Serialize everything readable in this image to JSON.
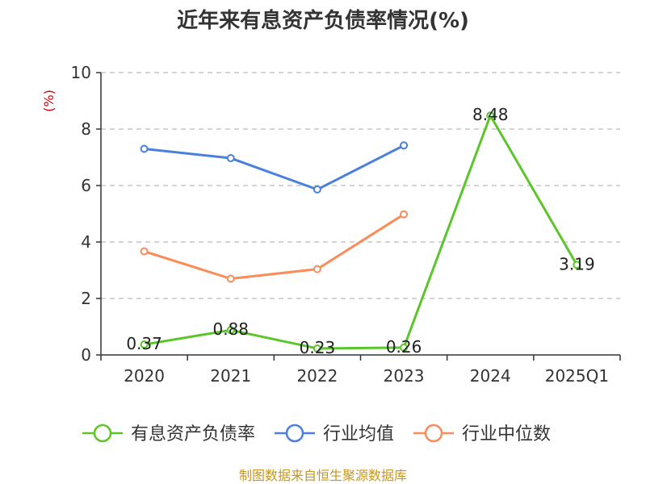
{
  "chart_data": {
    "type": "line",
    "title": "近年来有息资产负债率情况(%)",
    "ylabel": "(%)",
    "xlabel": "",
    "categories": [
      "2020",
      "2021",
      "2022",
      "2023",
      "2024",
      "2025Q1"
    ],
    "ylim": [
      0,
      10
    ],
    "yticks": [
      0,
      2,
      4,
      6,
      8,
      10
    ],
    "grid": true,
    "legend_position": "bottom",
    "series": [
      {
        "name": "有息资产负债率",
        "color": "#5cc52b",
        "values": [
          0.37,
          0.88,
          0.23,
          0.26,
          8.48,
          3.19
        ],
        "labels": [
          "0.37",
          "0.88",
          "0.23",
          "0.26",
          "8.48",
          "3.19"
        ]
      },
      {
        "name": "行业均值",
        "color": "#4a7fdc",
        "values": [
          7.3,
          6.97,
          5.86,
          7.42,
          null,
          null
        ]
      },
      {
        "name": "行业中位数",
        "color": "#fa8c5a",
        "values": [
          3.67,
          2.7,
          3.04,
          4.98,
          null,
          null
        ]
      }
    ]
  },
  "footer": {
    "source": "制图数据来自恒生聚源数据库"
  },
  "colors": {
    "title": "#333333",
    "axis": "#333333",
    "grid": "#bbbbbb",
    "y_unit": "#cc0000",
    "footer": "#c8961e"
  }
}
